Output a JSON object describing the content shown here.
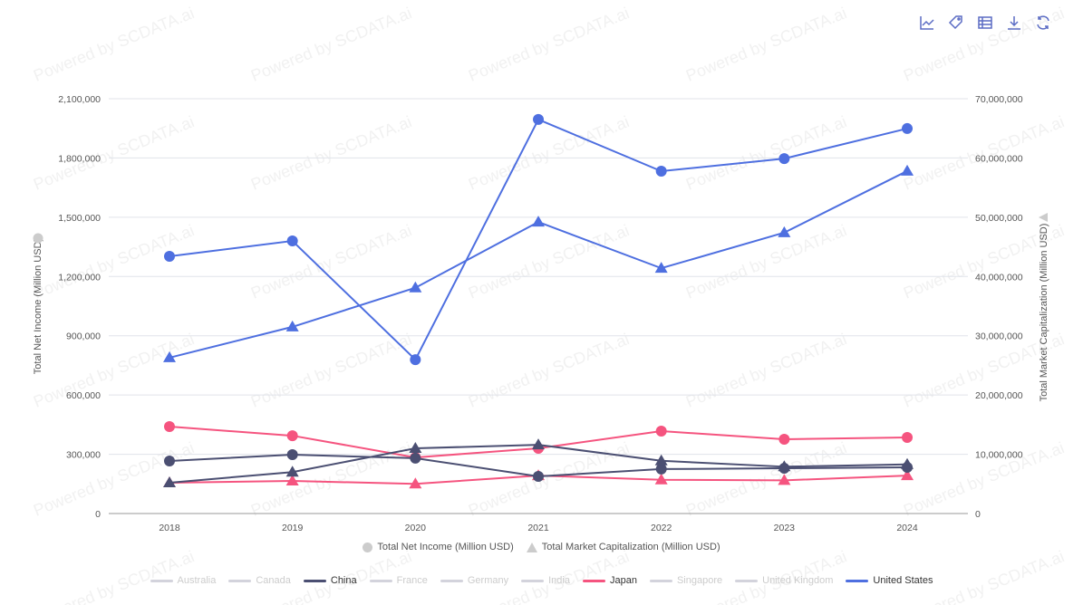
{
  "toolbar": {
    "icons": [
      "line-chart-icon",
      "tag-icon",
      "table-icon",
      "download-icon",
      "refresh-icon"
    ]
  },
  "watermark": "Powered by SCDATA.ai",
  "legend_measures": [
    {
      "label": "Total Net Income (Million USD)",
      "marker": "circle"
    },
    {
      "label": "Total Market Capitalization (Million USD)",
      "marker": "triangle"
    }
  ],
  "legend_countries": [
    {
      "label": "Australia",
      "active": false,
      "color": "#d3d3dc"
    },
    {
      "label": "Canada",
      "active": false,
      "color": "#d3d3dc"
    },
    {
      "label": "China",
      "active": true,
      "color": "#4b4f72"
    },
    {
      "label": "France",
      "active": false,
      "color": "#d3d3dc"
    },
    {
      "label": "Germany",
      "active": false,
      "color": "#d3d3dc"
    },
    {
      "label": "India",
      "active": false,
      "color": "#d3d3dc"
    },
    {
      "label": "Japan",
      "active": true,
      "color": "#f5547f"
    },
    {
      "label": "Singapore",
      "active": false,
      "color": "#d3d3dc"
    },
    {
      "label": "United Kingdom",
      "active": false,
      "color": "#d3d3dc"
    },
    {
      "label": "United States",
      "active": true,
      "color": "#4e6fe0"
    }
  ],
  "chart_data": {
    "type": "line",
    "x": [
      "2018",
      "2019",
      "2020",
      "2021",
      "2022",
      "2023",
      "2024"
    ],
    "y_left": {
      "label": "Total Net Income (Million USD)",
      "range": [
        0,
        2100000
      ],
      "ticks": [
        "0",
        "300,000",
        "600,000",
        "900,000",
        "1,200,000",
        "1,500,000",
        "1,800,000",
        "2,100,000"
      ]
    },
    "y_right": {
      "label": "Total Market Capitalization (Million USD)",
      "range": [
        0,
        70000000
      ],
      "ticks": [
        "0",
        "10,000,000",
        "20,000,000",
        "30,000,000",
        "40,000,000",
        "50,000,000",
        "60,000,000",
        "70,000,000"
      ]
    },
    "grid": true,
    "legend_position": "bottom",
    "series": [
      {
        "name": "United States",
        "measure": "Total Net Income (Million USD)",
        "axis": "left",
        "marker": "circle",
        "color": "#4e6fe0",
        "values": [
          1302000,
          1380000,
          779000,
          1995000,
          1733000,
          1797000,
          1949000
        ]
      },
      {
        "name": "United States",
        "measure": "Total Market Capitalization (Million USD)",
        "axis": "right",
        "marker": "triangle",
        "color": "#4e6fe0",
        "values": [
          26300000,
          31500000,
          38100000,
          49200000,
          41400000,
          47400000,
          57800000
        ]
      },
      {
        "name": "Japan",
        "measure": "Total Net Income (Million USD)",
        "axis": "left",
        "marker": "circle",
        "color": "#f5547f",
        "values": [
          440000,
          394000,
          284000,
          330000,
          417000,
          376000,
          385000
        ]
      },
      {
        "name": "Japan",
        "measure": "Total Market Capitalization (Million USD)",
        "axis": "right",
        "marker": "triangle",
        "color": "#f5547f",
        "values": [
          5200000,
          5500000,
          5000000,
          6400000,
          5700000,
          5600000,
          6400000
        ]
      },
      {
        "name": "China",
        "measure": "Total Net Income (Million USD)",
        "axis": "left",
        "marker": "circle",
        "color": "#4b4f72",
        "values": [
          266000,
          298000,
          280000,
          188000,
          225000,
          229000,
          234000
        ]
      },
      {
        "name": "China",
        "measure": "Total Market Capitalization (Million USD)",
        "axis": "right",
        "marker": "triangle",
        "color": "#4b4f72",
        "values": [
          5200000,
          7000000,
          11000000,
          11600000,
          8900000,
          7900000,
          8300000
        ]
      }
    ]
  }
}
